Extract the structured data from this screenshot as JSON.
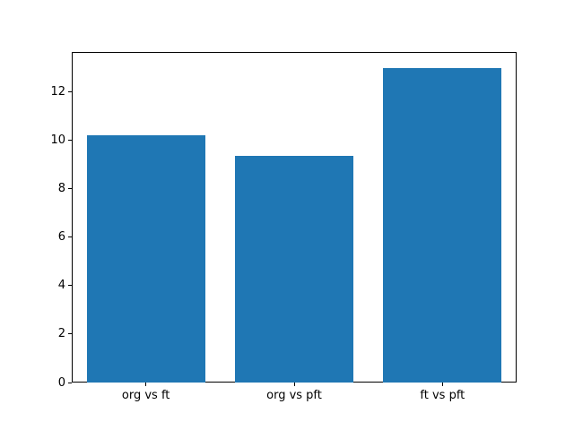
{
  "chart_data": {
    "type": "bar",
    "title": "",
    "xlabel": "",
    "ylabel": "",
    "categories": [
      "org vs ft",
      "org vs pft",
      "ft vs pft"
    ],
    "values": [
      10.2,
      9.35,
      13.0
    ],
    "yticks": [
      0,
      2,
      4,
      6,
      8,
      10,
      12
    ],
    "ylim": [
      0,
      13.65
    ],
    "bar_color": "#1f77b4",
    "background_color": "#ffffff",
    "axis_color": "#000000",
    "grid": false,
    "legend": false
  }
}
